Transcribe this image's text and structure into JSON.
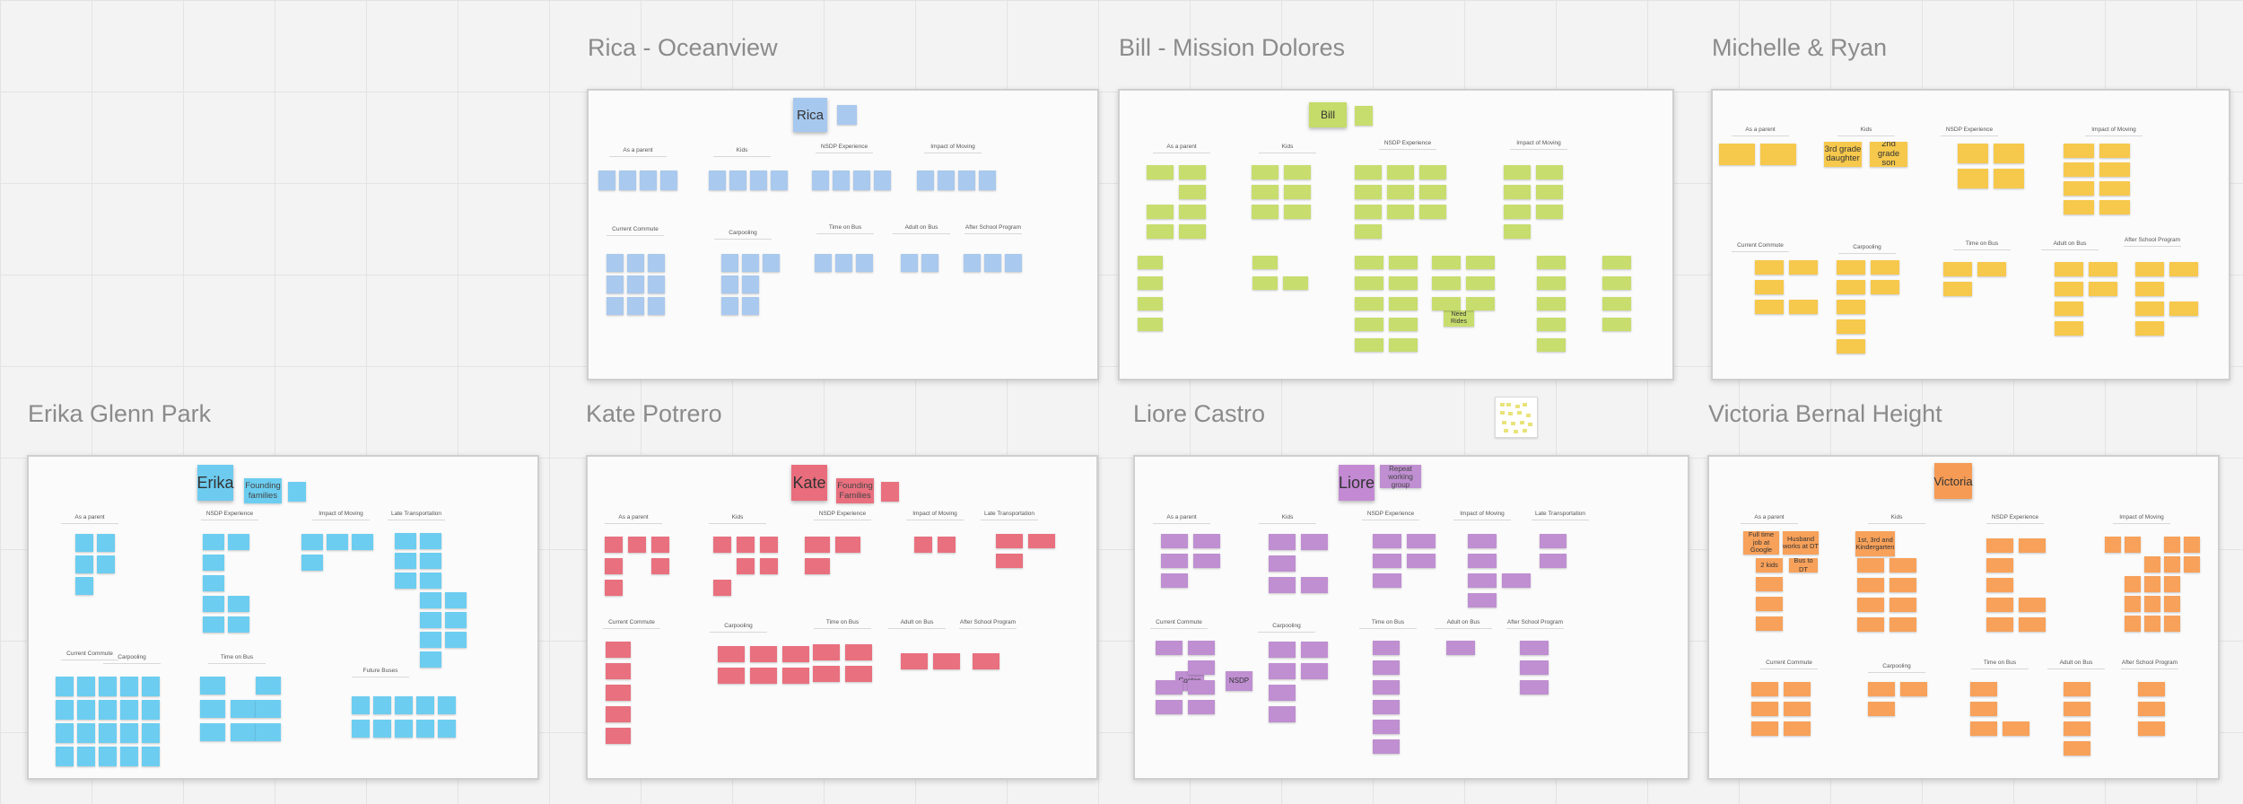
{
  "boards": [
    {
      "id": "rica",
      "title": "Rica - Oceanview",
      "name": "Rica",
      "color": "#a9c9ee",
      "name_color": "#a6c8ef"
    },
    {
      "id": "bill",
      "title": "Bill - Mission Dolores",
      "name": "Bill",
      "color": "#c7dd6e",
      "name_color": "#c5dc6a"
    },
    {
      "id": "michelle",
      "title": "Michelle & Ryan",
      "name": "",
      "color": "#f6c84c",
      "name_color": "#f6c84c"
    },
    {
      "id": "erika",
      "title": "Erika Glenn Park",
      "name": "Erika",
      "side_note": "Founding families",
      "color": "#6ccdf0",
      "name_color": "#6dcbef"
    },
    {
      "id": "kate",
      "title": "Kate Potrero",
      "name": "Kate",
      "side_note": "Founding Families",
      "color": "#e9707f",
      "name_color": "#e96d7c"
    },
    {
      "id": "liore",
      "title": "Liore Castro",
      "name": "Liore",
      "side_note": "Repeat working group",
      "color": "#bf8fd1",
      "name_color": "#c38ad3"
    },
    {
      "id": "victoria",
      "title": "Victoria Bernal Height",
      "name": "Victoria",
      "color": "#f7a15a",
      "name_color": "#f59b55"
    }
  ],
  "category_labels": {
    "as_parent": "As a parent",
    "kids": "Kids",
    "nsdp": "NSDP Experience",
    "impact": "Impact of Moving",
    "current_commute": "Current Commute",
    "carpooling": "Carpooling",
    "time_on_bus": "Time on Bus",
    "adult_on_bus": "Adult on Bus",
    "after_school": "After School Program",
    "late_transportation": "Late Transportation",
    "future_bus": "Future Buses"
  },
  "michelle_notes": {
    "third_grade": "3rd grade daughter",
    "second_grade": "2nd grade son"
  },
  "bill_notes": {
    "need_rides": "Need Rides"
  },
  "liore_notes": {
    "costco": "Costco",
    "nsdp": "NSDP"
  },
  "victoria_notes": {
    "full_time": "Full time job at Google",
    "husband": "Husband works at DT",
    "kids_ages": "1st, 3rd and Kindergarten",
    "two_kids": "2 kids",
    "bus_to_dt": "Bus to DT"
  },
  "colors": {
    "background": "#f3f3f3",
    "frame_title": "#8b8b8b",
    "board_border": "#cfcfcf"
  }
}
